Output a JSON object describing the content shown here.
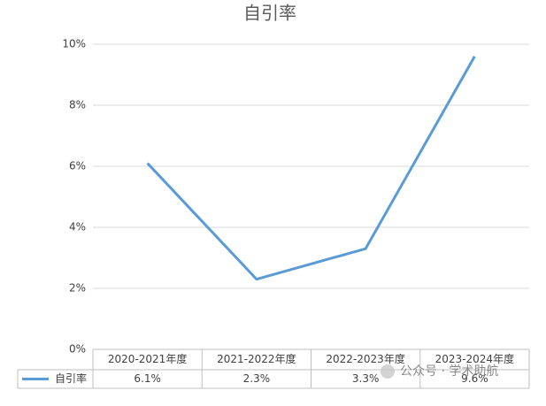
{
  "chart_data": {
    "type": "line",
    "title": "自引率",
    "categories": [
      "2020-2021年度",
      "2021-2022年度",
      "2022-2023年度",
      "2023-2024年度"
    ],
    "series": [
      {
        "name": "自引率",
        "color": "#5b9bd5",
        "values": [
          6.1,
          2.3,
          3.3,
          9.6
        ],
        "value_labels": [
          "6.1%",
          "2.3%",
          "3.3%",
          "9.6%"
        ]
      }
    ],
    "ylim": [
      0,
      10
    ],
    "yticks": [
      {
        "value": 0,
        "label": "0%"
      },
      {
        "value": 2,
        "label": "2%"
      },
      {
        "value": 4,
        "label": "4%"
      },
      {
        "value": 6,
        "label": "6%"
      },
      {
        "value": 8,
        "label": "8%"
      },
      {
        "value": 10,
        "label": "10%"
      }
    ],
    "grid": true,
    "watermark": "公众号 · 学术助航"
  }
}
